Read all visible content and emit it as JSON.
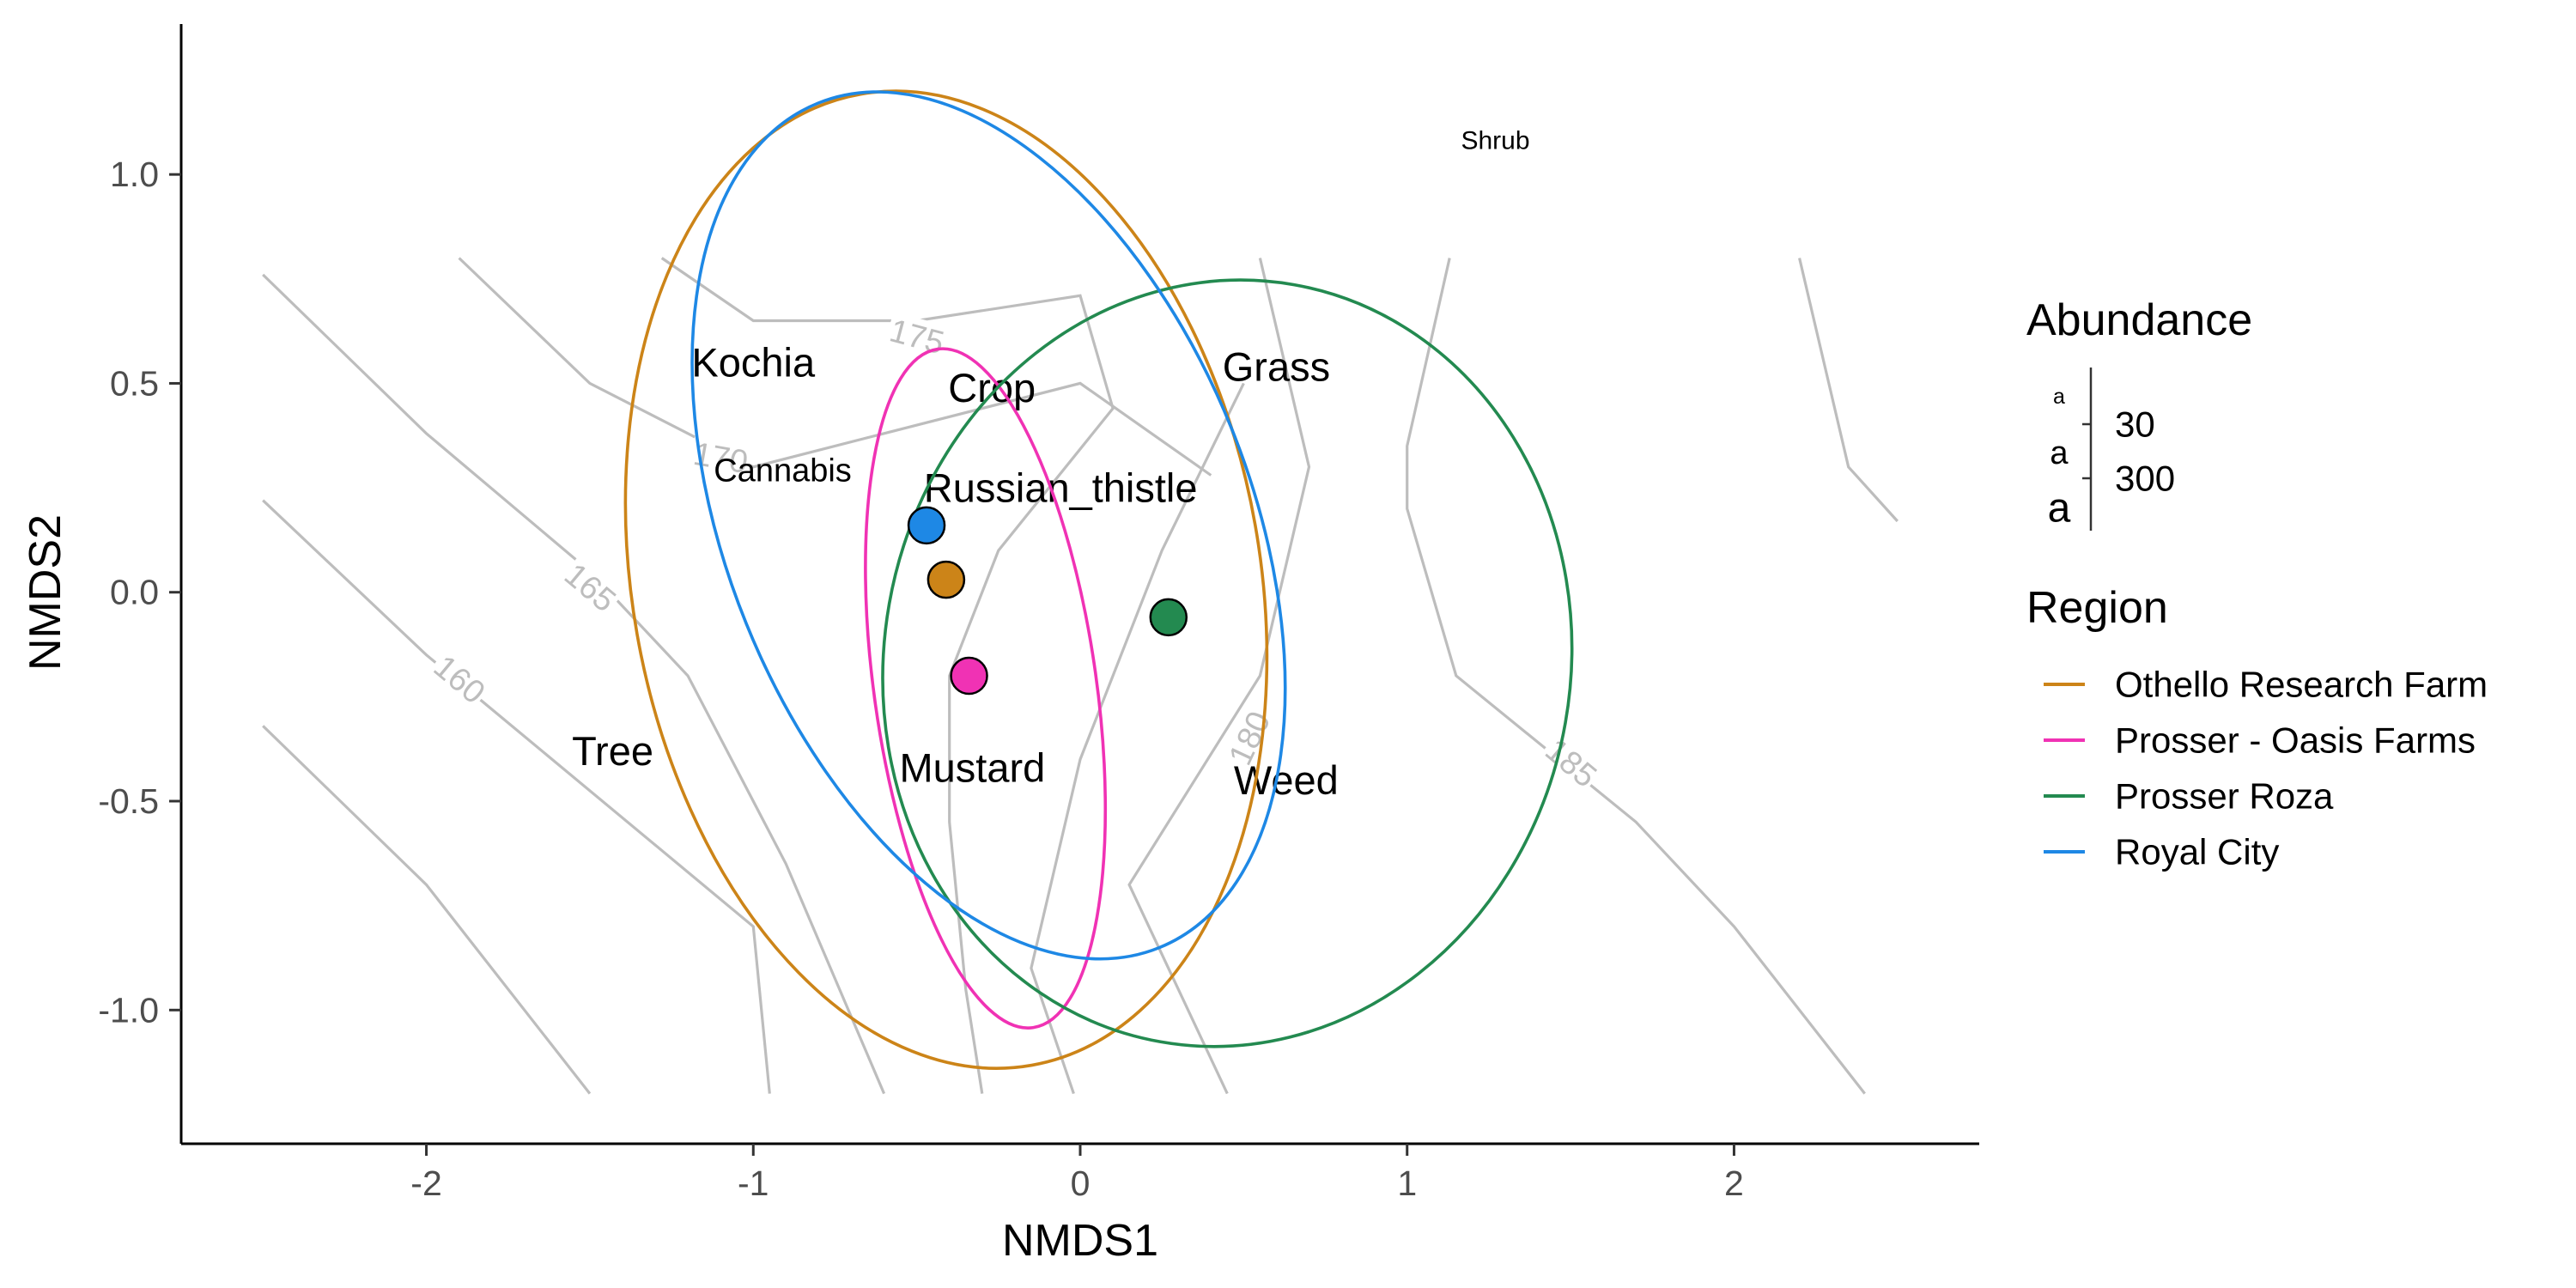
{
  "chart_data": {
    "type": "scatter",
    "xlabel": "NMDS1",
    "ylabel": "NMDS2",
    "xlim": [
      -2.75,
      2.75
    ],
    "ylim": [
      -1.32,
      1.36
    ],
    "x_ticks": [
      -2,
      -1,
      0,
      1,
      2
    ],
    "x_tick_labels": [
      "-2",
      "-1",
      "0",
      "1",
      "2"
    ],
    "y_ticks": [
      -1.0,
      -0.5,
      0.0,
      0.5,
      1.0
    ],
    "y_tick_labels": [
      "-1.0",
      "-0.5",
      "0.0",
      "0.5",
      "1.0"
    ],
    "grid": false,
    "legend_position": "right",
    "series": [
      {
        "name": "Othello Research Farm",
        "color": "#CC8418",
        "centroid": [
          -0.41,
          0.03
        ],
        "ellipse": {
          "cx": -0.41,
          "cy": 0.03,
          "rx": 0.96,
          "ry": 1.18,
          "angle_deg": -10
        }
      },
      {
        "name": "Prosser - Oasis Farms",
        "color": "#F032B4",
        "centroid": [
          -0.34,
          -0.2
        ],
        "ellipse": {
          "cx": -0.29,
          "cy": -0.23,
          "rx": 0.34,
          "ry": 0.82,
          "angle_deg": -8
        }
      },
      {
        "name": "Prosser Roza",
        "color": "#238A50",
        "centroid": [
          0.27,
          -0.06
        ],
        "ellipse": {
          "cx": 0.45,
          "cy": -0.17,
          "rx": 1.05,
          "ry": 0.92,
          "angle_deg": 10
        }
      },
      {
        "name": "Royal City",
        "color": "#1E88E5",
        "centroid": [
          -0.47,
          0.16
        ],
        "ellipse": {
          "cx": -0.28,
          "cy": 0.16,
          "rx": 0.8,
          "ry": 1.09,
          "angle_deg": -22
        }
      }
    ],
    "species_labels": [
      {
        "text": "Kochia",
        "x": -1.0,
        "y": 0.55,
        "size": "large"
      },
      {
        "text": "Crop",
        "x": -0.27,
        "y": 0.49,
        "size": "large"
      },
      {
        "text": "Grass",
        "x": 0.6,
        "y": 0.54,
        "size": "large"
      },
      {
        "text": "Cannabis",
        "x": -0.91,
        "y": 0.29,
        "size": "medium"
      },
      {
        "text": "Russian_thistle",
        "x": -0.06,
        "y": 0.25,
        "size": "large"
      },
      {
        "text": "Shrub",
        "x": 1.27,
        "y": 1.08,
        "size": "small"
      },
      {
        "text": "Tree",
        "x": -1.43,
        "y": -0.38,
        "size": "large"
      },
      {
        "text": "Mustard",
        "x": -0.33,
        "y": -0.42,
        "size": "large"
      },
      {
        "text": "Weed",
        "x": 0.63,
        "y": -0.45,
        "size": "large"
      }
    ],
    "contour_color": "#BDBDBD",
    "contours": [
      {
        "level": 160,
        "label": "160",
        "label_pos": [
          -1.9,
          -0.21
        ],
        "label_angle": 40,
        "points": [
          [
            -2.5,
            -0.32
          ],
          [
            -2.0,
            -0.7
          ],
          [
            -1.5,
            -1.2
          ]
        ]
      },
      {
        "level": 165,
        "label": "165",
        "label_pos": [
          -1.5,
          0.01
        ],
        "label_angle": 40,
        "points": [
          [
            -2.5,
            0.22
          ],
          [
            -2.0,
            -0.15
          ],
          [
            -1.0,
            -0.8
          ],
          [
            -0.95,
            -1.2
          ]
        ]
      },
      {
        "level": 170,
        "label": "170",
        "label_pos": [
          -1.1,
          0.32
        ],
        "label_angle": 10,
        "points": [
          [
            -2.5,
            0.76
          ],
          [
            -2.0,
            0.38
          ],
          [
            -1.5,
            0.05
          ],
          [
            -1.2,
            -0.2
          ],
          [
            -0.9,
            -0.65
          ],
          [
            -0.6,
            -1.2
          ]
        ]
      },
      {
        "level": 175,
        "label": "175",
        "label_pos": [
          -0.5,
          0.61
        ],
        "label_angle": 15,
        "points": [
          [
            -1.9,
            0.8
          ],
          [
            -1.5,
            0.5
          ],
          [
            -1.0,
            0.3
          ],
          [
            -0.6,
            0.38
          ],
          [
            0.0,
            0.5
          ],
          [
            0.4,
            0.28
          ]
        ]
      },
      {
        "level": 175,
        "label": "",
        "label_pos": null,
        "label_angle": 0,
        "points": [
          [
            -1.28,
            0.8
          ],
          [
            -1.0,
            0.65
          ],
          [
            -0.5,
            0.65
          ],
          [
            0.0,
            0.71
          ],
          [
            0.1,
            0.44
          ],
          [
            -0.25,
            0.1
          ],
          [
            -0.4,
            -0.2
          ],
          [
            -0.4,
            -0.55
          ],
          [
            -0.35,
            -0.95
          ],
          [
            -0.3,
            -1.2
          ]
        ]
      },
      {
        "level": 180,
        "label": "180",
        "label_pos": [
          0.52,
          -0.35
        ],
        "label_angle": -65,
        "points": [
          [
            0.55,
            0.8
          ],
          [
            0.7,
            0.3
          ],
          [
            0.55,
            -0.2
          ],
          [
            0.15,
            -0.7
          ],
          [
            0.45,
            -1.2
          ]
        ]
      },
      {
        "level": 180,
        "label": "",
        "label_pos": null,
        "label_angle": 0,
        "points": [
          [
            0.5,
            0.5
          ],
          [
            0.25,
            0.1
          ],
          [
            0.0,
            -0.4
          ],
          [
            -0.15,
            -0.9
          ],
          [
            -0.02,
            -1.2
          ]
        ]
      },
      {
        "level": 185,
        "label": "185",
        "label_pos": [
          1.5,
          -0.41
        ],
        "label_angle": 40,
        "points": [
          [
            1.13,
            0.8
          ],
          [
            1.0,
            0.35
          ],
          [
            1.0,
            0.2
          ],
          [
            1.15,
            -0.2
          ],
          [
            1.7,
            -0.55
          ],
          [
            2.0,
            -0.8
          ],
          [
            2.4,
            -1.2
          ]
        ]
      },
      {
        "level": 190,
        "label": "",
        "label_pos": null,
        "label_angle": 0,
        "points": [
          [
            2.2,
            0.8
          ],
          [
            2.35,
            0.3
          ],
          [
            2.5,
            0.17
          ]
        ]
      }
    ],
    "abundance_legend": {
      "title": "Abundance",
      "glyph": "a",
      "entries": [
        {
          "value": 30,
          "label": "30"
        },
        {
          "value": 300,
          "label": "300"
        }
      ]
    },
    "region_legend": {
      "title": "Region"
    }
  }
}
